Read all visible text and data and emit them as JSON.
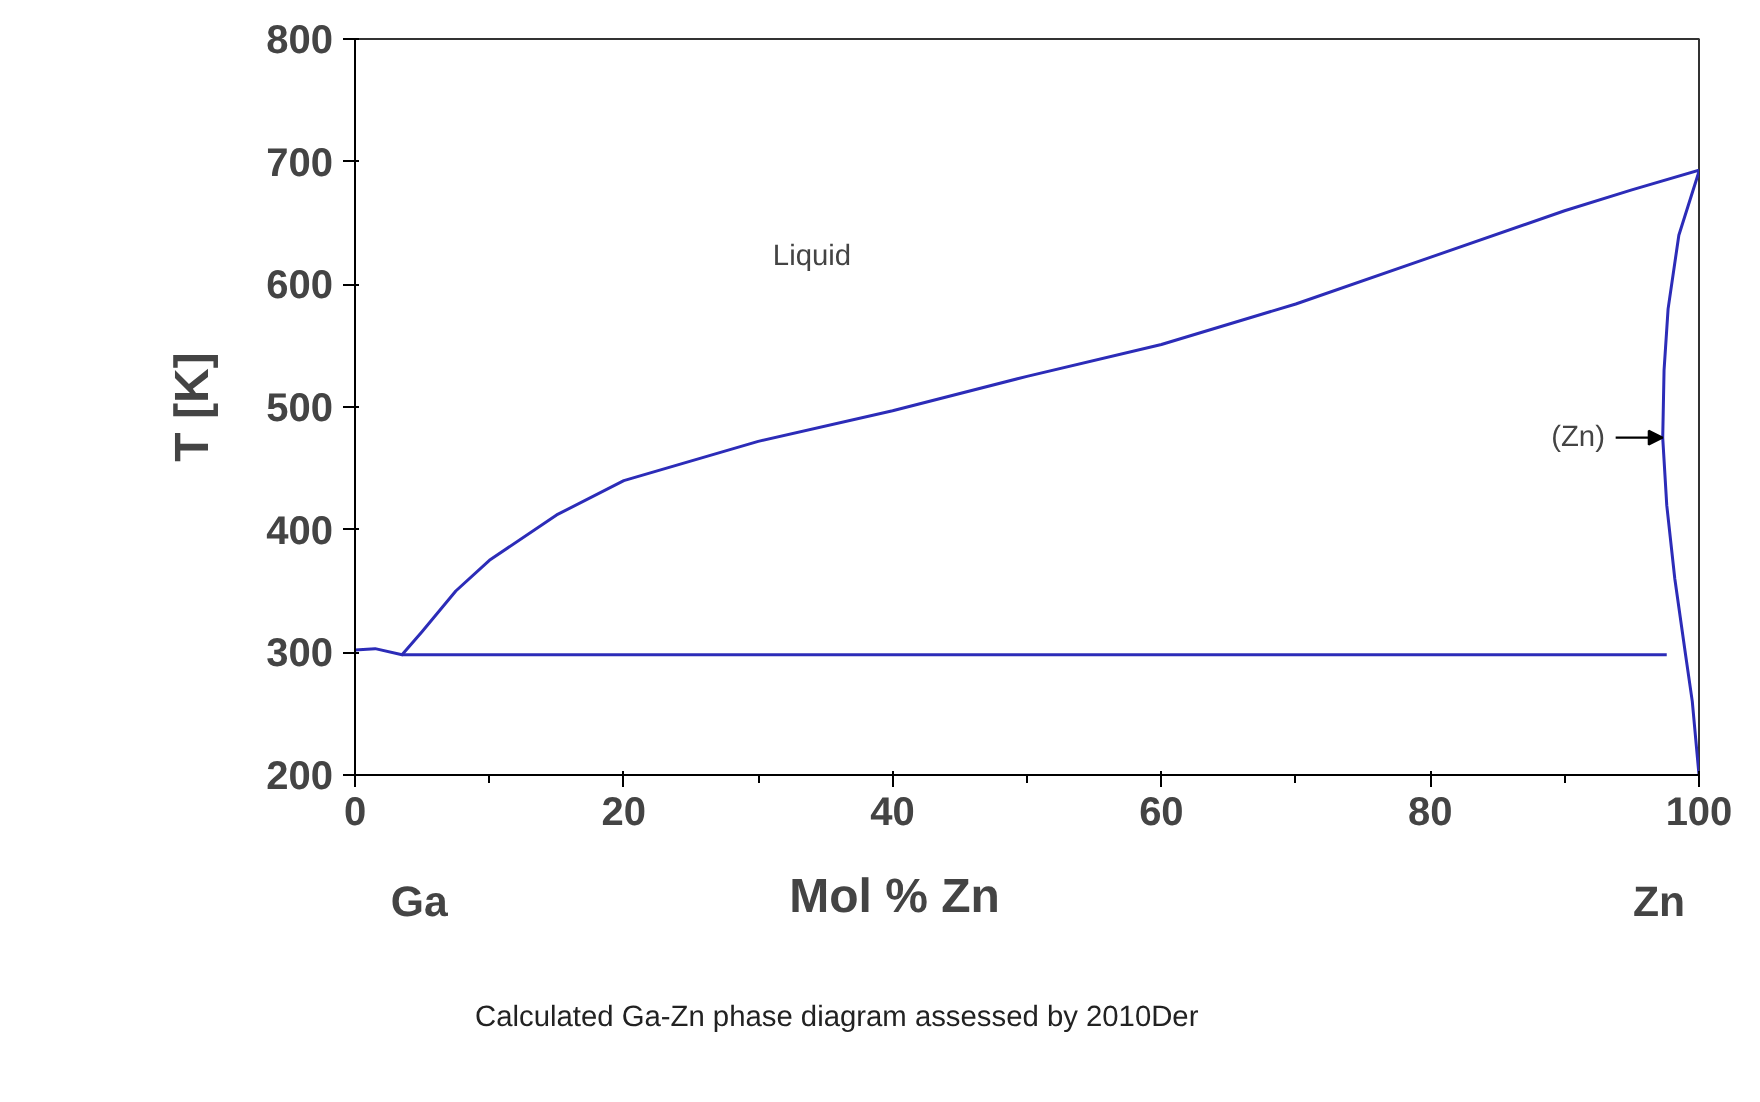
{
  "chart_data": {
    "type": "line",
    "xlabel": "Mol % Zn",
    "ylabel": "T [K]",
    "xlim": [
      0,
      100
    ],
    "xticks": [
      0,
      20,
      40,
      60,
      80,
      100
    ],
    "ylim": [
      200,
      800
    ],
    "yticks": [
      200,
      300,
      400,
      500,
      600,
      700,
      800
    ],
    "grid": false,
    "marker": "none",
    "line_style": "solid",
    "series": [
      {
        "color": "#2c2cb8",
        "x": [
          0,
          1.5,
          3.5,
          5,
          7.5,
          10,
          15,
          20,
          30,
          40,
          50,
          60,
          70,
          80,
          90,
          95,
          100
        ],
        "values": [
          302,
          303,
          298,
          317,
          350,
          375,
          412,
          440,
          472,
          497,
          525,
          551,
          584,
          622,
          660,
          677,
          693
        ]
      },
      {
        "color": "#2c2cb8",
        "x": [
          3.5,
          97.6
        ],
        "values": [
          298,
          298
        ]
      },
      {
        "color": "#2c2cb8",
        "x": [
          100,
          98.5,
          97.7,
          97.4,
          97.3,
          97.6,
          98.2,
          99,
          99.5,
          100
        ],
        "values": [
          692,
          640,
          580,
          530,
          475,
          420,
          360,
          298,
          260,
          200
        ]
      }
    ],
    "annotations": [
      "Liquid",
      {
        "text": "(Zn)",
        "x": 97.3,
        "y": 475
      },
      "Ga",
      "Zn",
      "Calculated Ga-Zn phase diagram assessed by 2010Der"
    ]
  }
}
